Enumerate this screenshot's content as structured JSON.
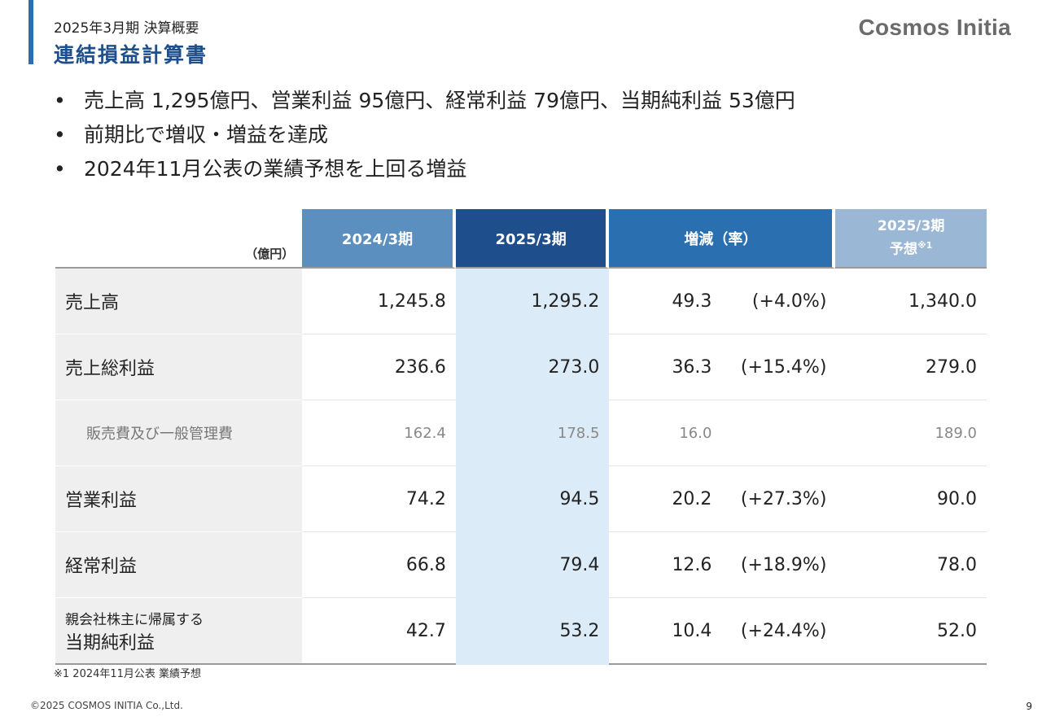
{
  "header": {
    "subtitle": "2025年3月期 決算概要",
    "title": "連結損益計算書",
    "logo": "Cosmos Initia"
  },
  "bullets": [
    "売上高 1,295億円、営業利益 95億円、経常利益 79億円、当期純利益 53億円",
    "前期比で増収・増益を達成",
    "2024年11月公表の業績予想を上回る増益"
  ],
  "bullet_symbol": "•",
  "table": {
    "unit": "（億円）",
    "headers": {
      "prev": "2024/3期",
      "curr": "2025/3期",
      "diff": "増減（率）",
      "forecast_line1": "2025/3期",
      "forecast_line2": "予想",
      "forecast_note": "※1"
    },
    "rows": [
      {
        "label": "売上高",
        "prev": "1,245.8",
        "curr": "1,295.2",
        "diff": "49.3",
        "rate": "(+4.0%)",
        "forecast": "1,340.0"
      },
      {
        "label": "売上総利益",
        "prev": "236.6",
        "curr": "273.0",
        "diff": "36.3",
        "rate": "(+15.4%)",
        "forecast": "279.0"
      },
      {
        "label": "販売費及び一般管理費",
        "prev": "162.4",
        "curr": "178.5",
        "diff": "16.0",
        "rate": "",
        "forecast": "189.0"
      },
      {
        "label": "営業利益",
        "prev": "74.2",
        "curr": "94.5",
        "diff": "20.2",
        "rate": "(+27.3%)",
        "forecast": "90.0"
      },
      {
        "label": "経常利益",
        "prev": "66.8",
        "curr": "79.4",
        "diff": "12.6",
        "rate": "(+18.9%)",
        "forecast": "78.0"
      },
      {
        "label_small": "親会社株主に帰属する",
        "label": "当期純利益",
        "prev": "42.7",
        "curr": "53.2",
        "diff": "10.4",
        "rate": "(+24.4%)",
        "forecast": "52.0"
      }
    ]
  },
  "footnote": "※1  2024年11月公表 業績予想",
  "copyright": "©2025 COSMOS INITIA Co.,Ltd.",
  "page_number": "9",
  "colors": {
    "accent": "#2a6fb0",
    "title": "#1f4e8c",
    "header_prev": "#5b8fc0",
    "header_curr": "#1f4e8c",
    "header_diff": "#2a6fb0",
    "header_forecast": "#9bb7d6",
    "highlight_column": "#dcebf8",
    "label_background": "#efefef"
  }
}
